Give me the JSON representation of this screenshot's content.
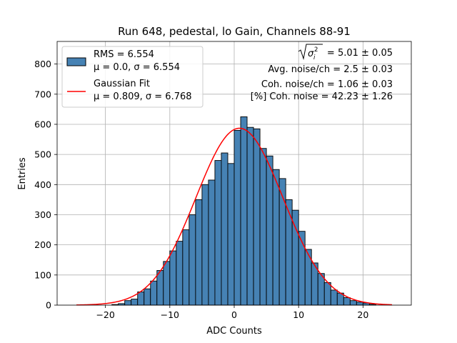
{
  "chart_data": {
    "type": "bar",
    "title": "Run 648, pedestal, lo Gain, Channels 88-91",
    "xlabel": "ADC Counts",
    "ylabel": "Entries",
    "xlim": [
      -27.5,
      27.5
    ],
    "ylim": [
      0,
      875
    ],
    "xticks": [
      -20,
      -10,
      0,
      10,
      20
    ],
    "yticks": [
      0,
      100,
      200,
      300,
      400,
      500,
      600,
      700,
      800
    ],
    "grid": true,
    "bin_width": 1,
    "hist_color": "#4682b4",
    "fit_color": "#ff0000",
    "histogram": {
      "bin_starts": [
        -19,
        -18,
        -17,
        -16,
        -15,
        -14,
        -13,
        -12,
        -11,
        -10,
        -9,
        -8,
        -7,
        -6,
        -5,
        -4,
        -3,
        -2,
        -1,
        0,
        1,
        2,
        3,
        4,
        5,
        6,
        7,
        8,
        9,
        10,
        11,
        12,
        13,
        14,
        15,
        16,
        17,
        18,
        19,
        20,
        21
      ],
      "counts": [
        2,
        5,
        15,
        20,
        44,
        54,
        80,
        115,
        145,
        180,
        212,
        250,
        300,
        350,
        400,
        415,
        480,
        505,
        470,
        580,
        625,
        590,
        585,
        520,
        495,
        450,
        420,
        350,
        315,
        245,
        185,
        140,
        105,
        75,
        50,
        40,
        25,
        15,
        10,
        7,
        3
      ]
    },
    "fit": {
      "mu": 0.809,
      "sigma": 6.768,
      "amplitude": 587,
      "x_range": [
        -24.5,
        24.5
      ]
    },
    "legend": {
      "placement": "upper-left",
      "entries": [
        {
          "line1": "RMS = 6.554",
          "line2": "μ = 0.0, σ = 6.554"
        },
        {
          "line1": "Gaussian Fit",
          "line2": "μ = 0.809, σ = 6.768"
        }
      ]
    },
    "annotations": {
      "line1_value": " = 5.01 ± 0.05",
      "line2": "Avg. noise/ch = 2.5 ± 0.03",
      "line3": "Coh. noise/ch = 1.06 ± 0.03",
      "line4": "[%] Coh. noise = 42.23 ± 1.26"
    }
  }
}
